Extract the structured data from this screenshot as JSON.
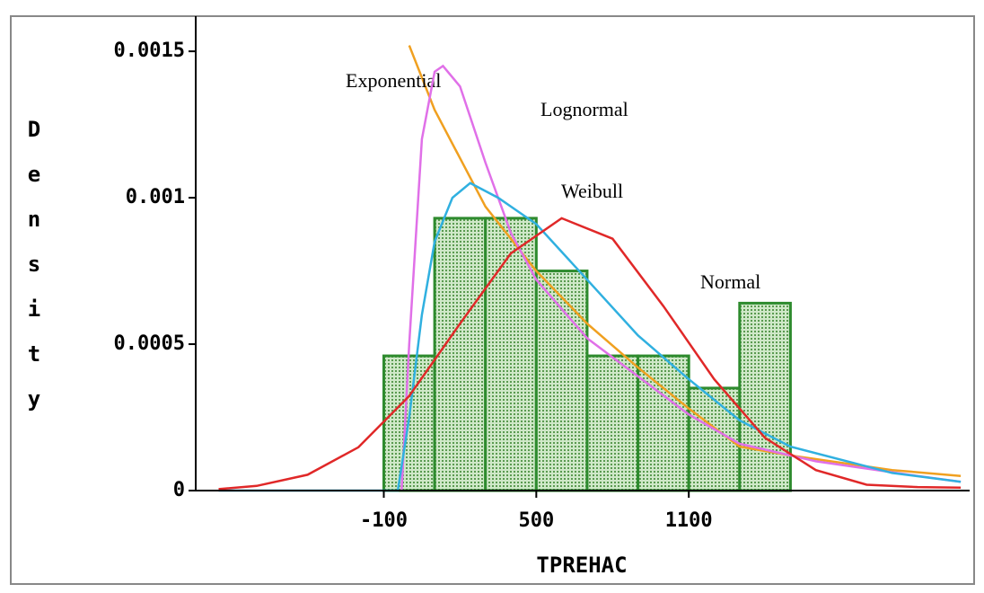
{
  "chart_data": {
    "type": "histogram",
    "x_label": "TPREHAC",
    "y_label": "Density",
    "bins": [
      -100,
      100,
      300,
      500,
      700,
      900,
      1100,
      1300,
      1500
    ],
    "values": [
      0.00046,
      0.00093,
      0.00093,
      0.00075,
      0.00046,
      0.00046,
      0.00035,
      0.00064
    ],
    "color": "#2e8b2e",
    "xlim": [
      -840,
      2205
    ],
    "xticks": [
      -100,
      500,
      1100
    ],
    "ylim": [
      0,
      0.00162
    ],
    "yticks": [
      0,
      0.0005,
      0.001,
      0.0015
    ],
    "series": [
      {
        "name": "Exponential",
        "color": "#f0a020",
        "x": [
          0,
          100,
          300,
          500,
          700,
          900,
          1100,
          1300,
          1500,
          1900,
          2170
        ],
        "values": [
          0.00152,
          0.0013,
          0.00097,
          0.00075,
          0.00057,
          0.00042,
          0.00028,
          0.00015,
          0.00012,
          7e-05,
          5e-05
        ]
      },
      {
        "name": "Lognormal",
        "color": "#e070e8",
        "x": [
          -30,
          0,
          50,
          100,
          133,
          200,
          300,
          400,
          500,
          700,
          900,
          1100,
          1300,
          1600,
          2000,
          2170
        ],
        "values": [
          0,
          0.0005,
          0.0012,
          0.00143,
          0.00145,
          0.00138,
          0.00112,
          0.00088,
          0.00072,
          0.00052,
          0.00039,
          0.00026,
          0.00016,
          0.0001,
          5e-05,
          3e-05
        ]
      },
      {
        "name": "Weibull",
        "color": "#30b0e0",
        "x": [
          -750,
          -45,
          0,
          50,
          100,
          170,
          240,
          350,
          500,
          700,
          900,
          1100,
          1300,
          1500,
          1900,
          2170
        ],
        "values": [
          0,
          0,
          0.00025,
          0.0006,
          0.00085,
          0.001,
          0.00105,
          0.001,
          0.00091,
          0.00072,
          0.00053,
          0.00038,
          0.00024,
          0.00015,
          6e-05,
          3e-05
        ]
      },
      {
        "name": "Normal",
        "color": "#e02828",
        "x": [
          -750,
          -600,
          -400,
          -200,
          0,
          200,
          400,
          600,
          800,
          1000,
          1200,
          1400,
          1600,
          1800,
          2000,
          2170
        ],
        "values": [
          5e-06,
          1.6e-05,
          5.4e-05,
          0.000148,
          0.000323,
          0.00057,
          0.00081,
          0.00093,
          0.00086,
          0.00063,
          0.00038,
          0.00018,
          7e-05,
          2e-05,
          1.2e-05,
          1e-05
        ]
      }
    ]
  }
}
